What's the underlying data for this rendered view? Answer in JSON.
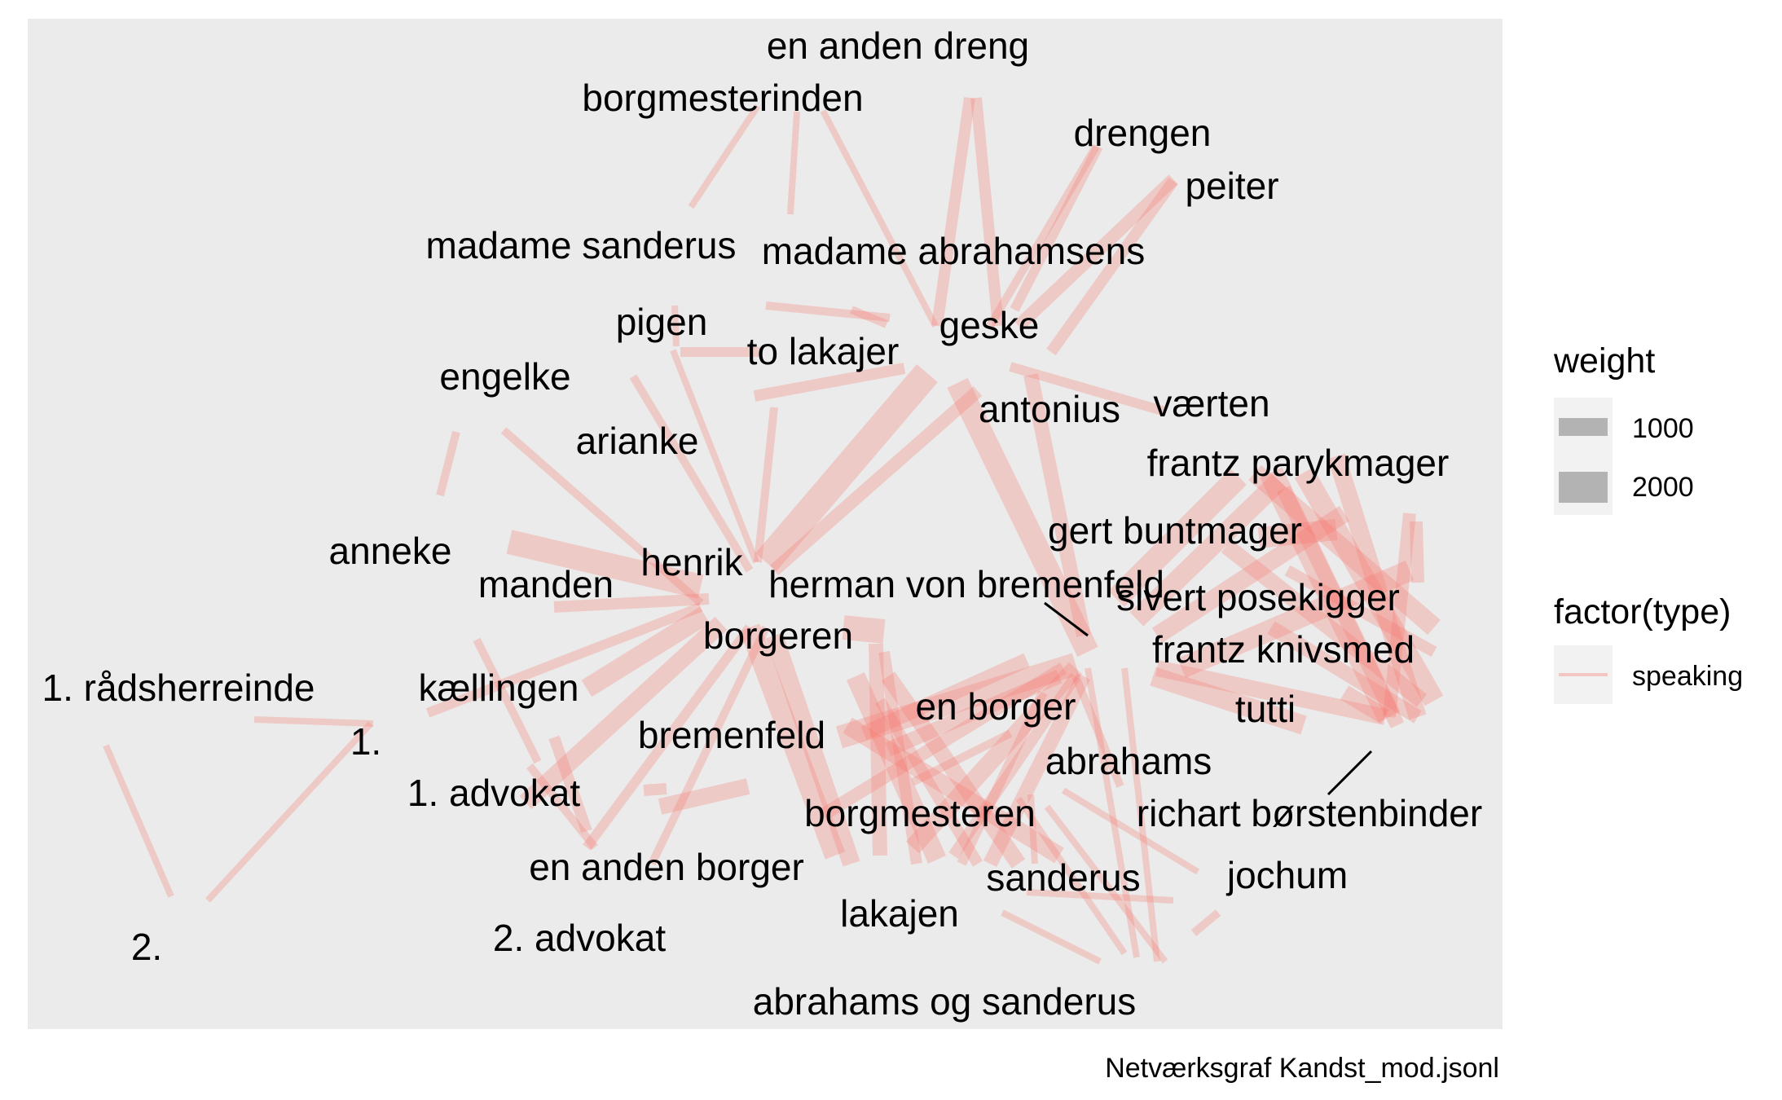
{
  "caption": "Netværksgraf Kandst_mod.jsonl",
  "colors": {
    "panel_background": "#ebebeb",
    "edge_color": "#f8766d",
    "legend_key_background": "#f2f2f2",
    "legend_weight_swatch": "#b3b3b3",
    "label_color": "#000000"
  },
  "legend": {
    "weight": {
      "title": "weight",
      "entries": [
        {
          "label": "1000",
          "value": 1000
        },
        {
          "label": "2000",
          "value": 2000
        }
      ]
    },
    "type": {
      "title": "factor(type)",
      "entries": [
        {
          "label": "speaking"
        }
      ]
    }
  },
  "chart_data": {
    "type": "network",
    "edge_type": "speaking",
    "nodes": [
      "en anden dreng",
      "borgmesterinden",
      "drengen",
      "peiter",
      "madame sanderus",
      "madame abrahamsens",
      "pigen",
      "to lakajer",
      "geske",
      "engelke",
      "antonius",
      "værten",
      "arianke",
      "frantz parykmager",
      "gert buntmager",
      "anneke",
      "henrik",
      "manden",
      "herman von bremenfeld",
      "sivert posekigger",
      "borgeren",
      "frantz knivsmed",
      "1. rådsherreinde",
      "kællingen",
      "en borger",
      "tutti",
      "1.",
      "bremenfeld",
      "abrahams",
      "1. advokat",
      "borgmesteren",
      "richart børstenbinder",
      "en anden borger",
      "sanderus",
      "jochum",
      "lakajen",
      "2.",
      "2. advokat",
      "abrahams og sanderus"
    ]
  }
}
